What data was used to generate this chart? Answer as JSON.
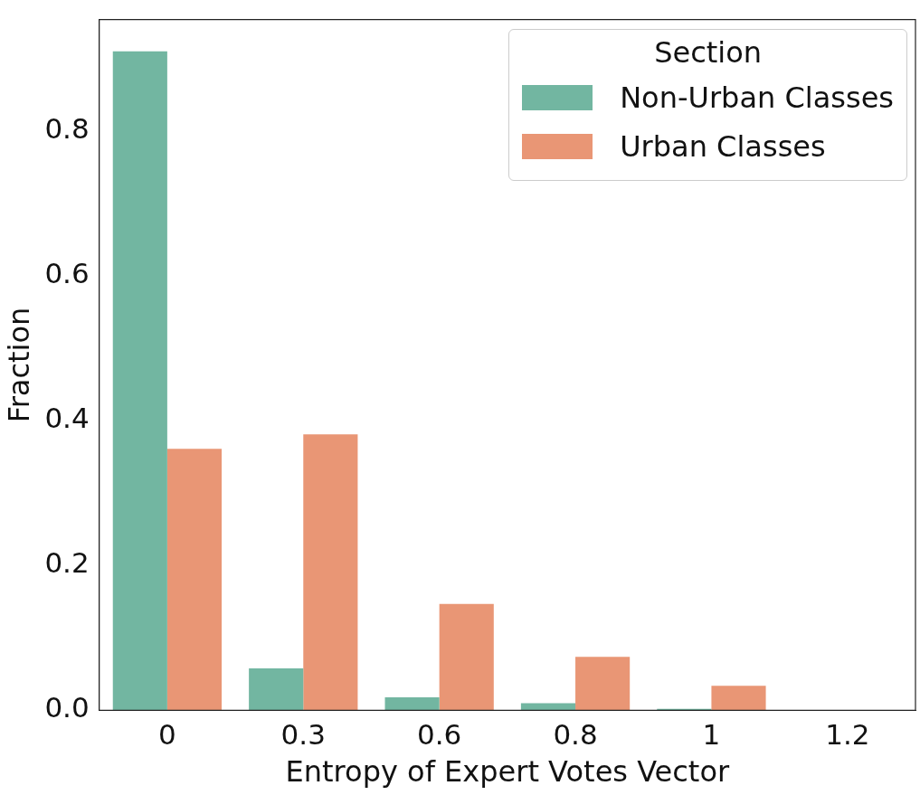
{
  "chart_data": {
    "type": "bar",
    "xlabel": "Entropy of Expert Votes Vector",
    "ylabel": "Fraction",
    "legend_title": "Section",
    "legend": "top right",
    "grid": false,
    "categories": [
      "0",
      "0.3",
      "0.6",
      "0.8",
      "1",
      "1.2"
    ],
    "series": [
      {
        "name": "Non-Urban Classes",
        "color": "#72b6a1",
        "values": [
          0.91,
          0.058,
          0.018,
          0.01,
          0.002,
          0
        ]
      },
      {
        "name": "Urban Classes",
        "color": "#e99675",
        "values": [
          0.361,
          0.381,
          0.147,
          0.074,
          0.034,
          0
        ]
      }
    ],
    "ylim": [
      0,
      0.954
    ],
    "yticks": [
      {
        "value": 0,
        "label": "0.0"
      },
      {
        "value": 0.2,
        "label": "0.2"
      },
      {
        "value": 0.4,
        "label": "0.4"
      },
      {
        "value": 0.6,
        "label": "0.6"
      },
      {
        "value": 0.8,
        "label": "0.8"
      }
    ]
  }
}
